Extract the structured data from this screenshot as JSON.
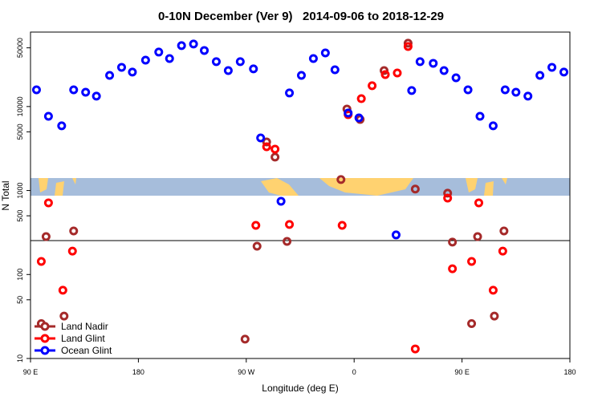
{
  "chart_data": {
    "type": "scatter",
    "title": "0-10N December (Ver 9)   2014-09-06 to 2018-12-29",
    "x_label": "Longitude (deg E)",
    "y_label": "N Total",
    "xlim": [
      90,
      540
    ],
    "xticks": [
      {
        "value": 90,
        "label": "90 E"
      },
      180,
      {
        "value": 270,
        "label": "90 W"
      },
      {
        "value": 360,
        "label": "0"
      },
      {
        "value": 450,
        "label": "90 E"
      },
      {
        "value": 540,
        "label": "180"
      }
    ],
    "ylim": [
      10,
      77000
    ],
    "yscale": "log",
    "yticks": [
      10,
      50,
      100,
      500,
      1000,
      5000,
      10000,
      50000
    ],
    "legend": "bottom-left",
    "series": [
      {
        "name": "Land Nadir",
        "color": "#a52a2a",
        "x": [
          99,
          103,
          118,
          126,
          269,
          279,
          287,
          294,
          304,
          349,
          354,
          365,
          385,
          405,
          411,
          438,
          442,
          458,
          463,
          477,
          485
        ],
        "values": [
          26,
          283,
          32,
          330,
          17,
          217,
          3790,
          2500,
          248,
          1350,
          9340,
          7020,
          26800,
          56700,
          1040,
          929,
          243,
          26,
          283,
          32,
          330
        ]
      },
      {
        "name": "Land Glint",
        "color": "#ff0000",
        "x": [
          99,
          105,
          117,
          125,
          278,
          287,
          294,
          306,
          350,
          355,
          366,
          375,
          386,
          396,
          405,
          411,
          438,
          442,
          458,
          464,
          476,
          484
        ],
        "values": [
          143,
          713,
          65,
          190,
          385,
          3320,
          3110,
          394,
          385,
          8010,
          12400,
          17700,
          24000,
          25100,
          51900,
          13,
          813,
          117,
          143,
          713,
          65,
          190
        ]
      },
      {
        "name": "Ocean Glint",
        "color": "#0000ff",
        "x": [
          95,
          105,
          116,
          126,
          136,
          145,
          156,
          166,
          175,
          186,
          197,
          206,
          216,
          226,
          235,
          245,
          255,
          265,
          276,
          282,
          299,
          306,
          316,
          326,
          336,
          344,
          355,
          364,
          395,
          408,
          415,
          426,
          435,
          445,
          455,
          465,
          476,
          486,
          495,
          505,
          515,
          525,
          535
        ],
        "values": [
          15800,
          7660,
          5890,
          15800,
          14800,
          13300,
          23500,
          29300,
          25700,
          35700,
          44500,
          37300,
          53100,
          55500,
          46500,
          34200,
          26800,
          34200,
          28100,
          4230,
          745,
          14500,
          23500,
          37300,
          43500,
          27400,
          8370,
          7330,
          296,
          15500,
          34200,
          32700,
          26800,
          22000,
          15800,
          7660,
          5890,
          15800,
          14800,
          13300,
          23500,
          29300,
          25700
        ]
      }
    ]
  }
}
